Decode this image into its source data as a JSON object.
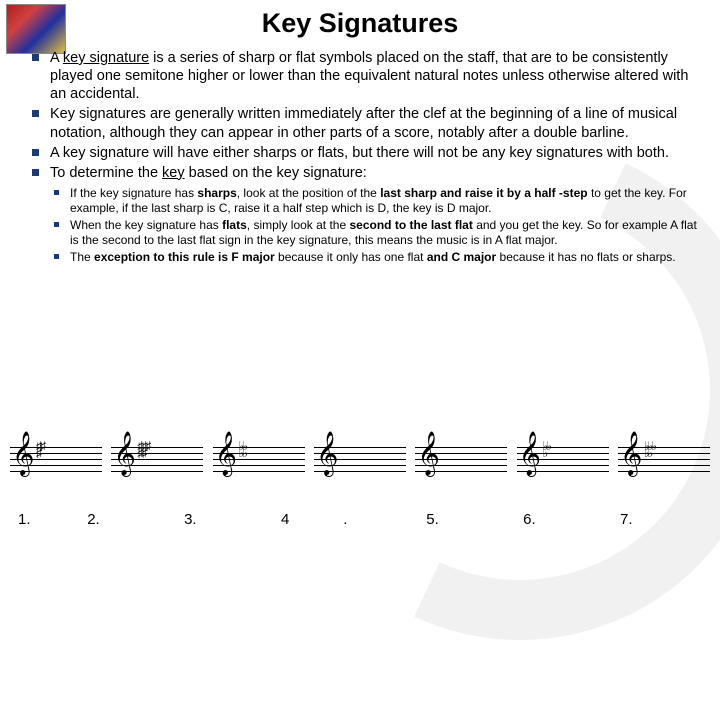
{
  "title": "Key Signatures",
  "bullets": [
    {
      "pre": "A ",
      "u": "key signature",
      "post": " is a series of sharp or flat symbols placed on the staff, that are to be consistently played one semitone higher or lower than the equivalent natural notes unless otherwise altered with an accidental."
    },
    {
      "text": "Key signatures are generally written immediately after the clef at the beginning of a line of musical notation, although they can appear in other parts of a score, notably after a double barline."
    },
    {
      "text": "A key signature will have either sharps or flats, but there will not be any key signatures with both."
    },
    {
      "pre": "To determine the ",
      "u": "key",
      "post": " based on the key signature:"
    }
  ],
  "sub": [
    {
      "html": "If the key signature has <b>sharps</b>, look at the position of the <b>last sharp and raise it by a half -step</b> to get the key. For example, if the last sharp is C, raise it a half step which is D, the key is D major."
    },
    {
      "html": "When the key signature has <b>flats</b>, simply look at the <b>second to the last flat</b> and you get the key. So for example A flat is the second to the last flat sign in the key signature, this means the music is in A flat major."
    },
    {
      "html": "The <b>exception to this rule is F major</b> because it only has one flat <b>and C major</b> because it has no flats or sharps."
    }
  ],
  "staves": [
    {
      "sig": "♯♯<br>♯"
    },
    {
      "sig": "♯♯♯<br>♯♯"
    },
    {
      "sig": "♭♭<br>♭♭"
    },
    {
      "sig": ""
    },
    {
      "sig": ""
    },
    {
      "sig": "♭♭<br>♭"
    },
    {
      "sig": "♭♭♭<br>♭♭"
    }
  ],
  "numbers": [
    "1.",
    "2.",
    "3.",
    "4",
    ".",
    "5.",
    "6.",
    "7."
  ],
  "colors": {
    "bullet": "#1a3a7a",
    "text": "#000000",
    "bg": "#ffffff"
  }
}
